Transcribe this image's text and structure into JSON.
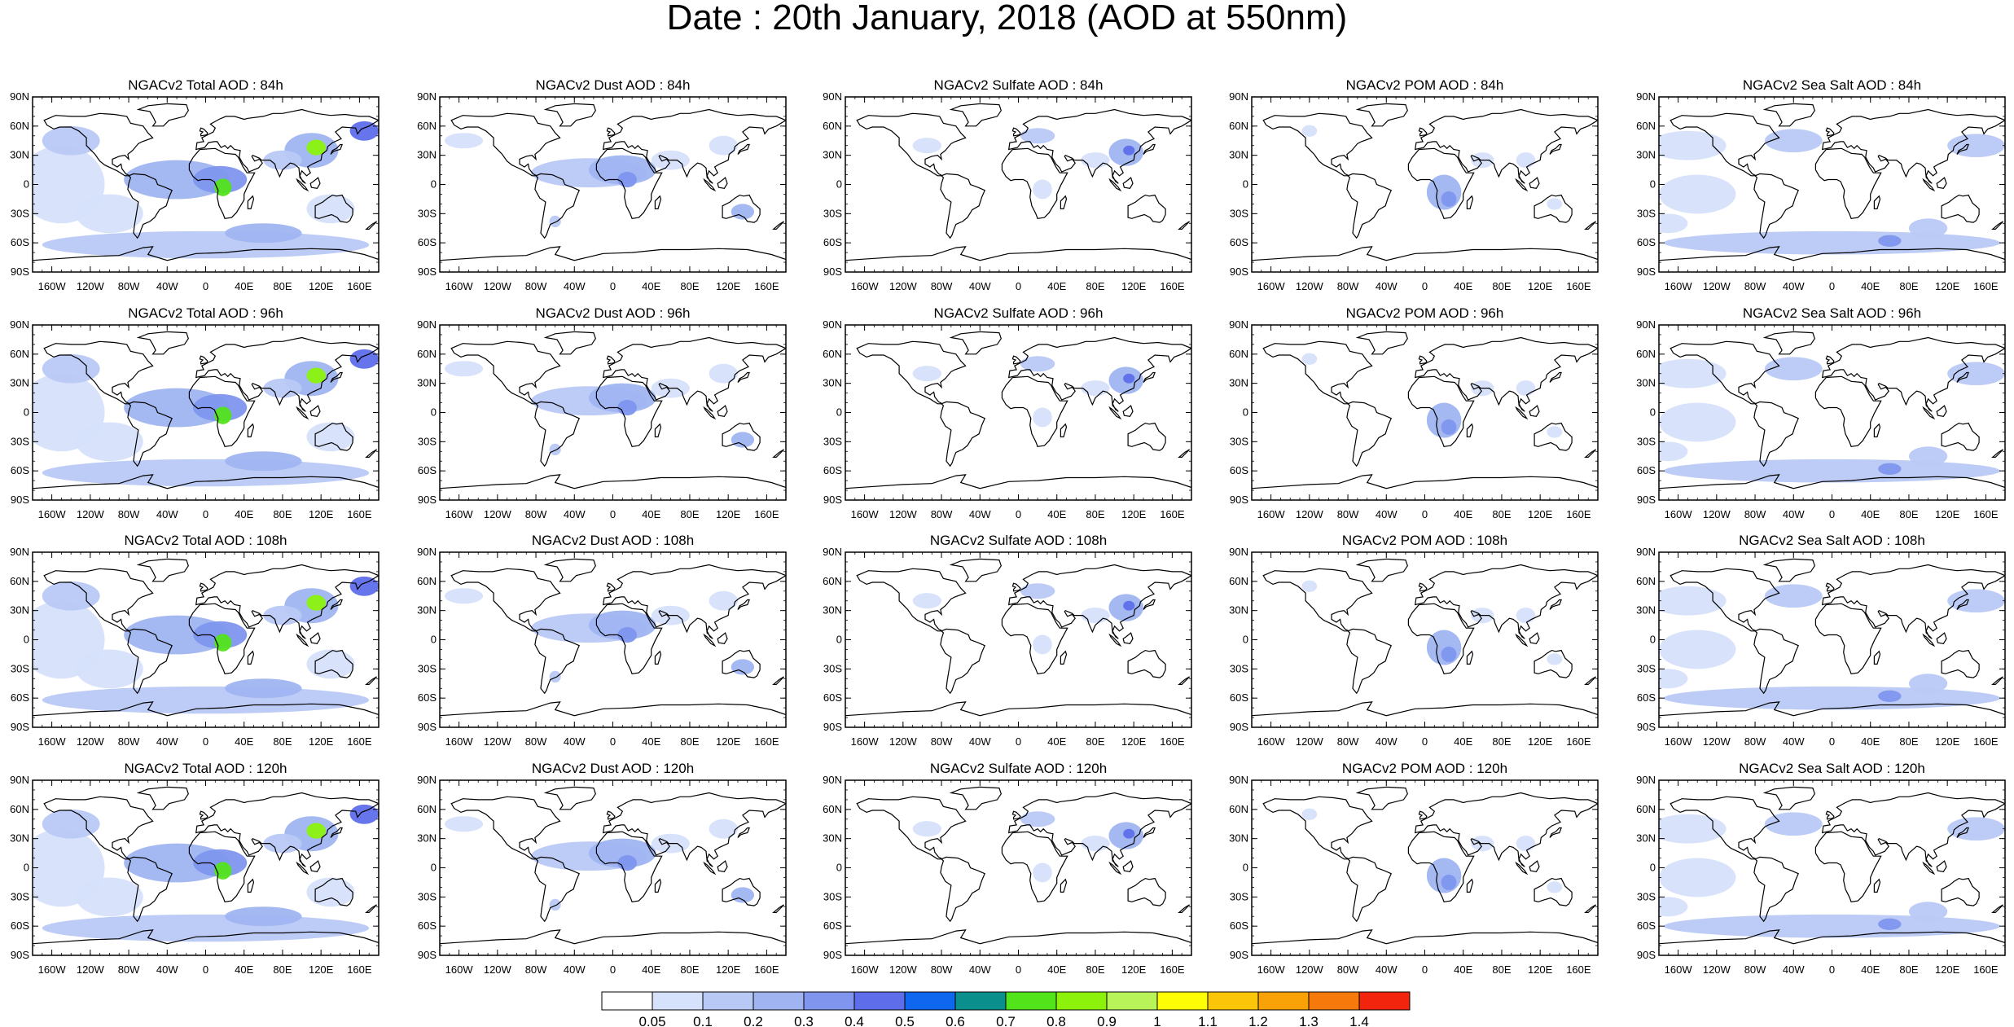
{
  "title": "Date : 20th January, 2018 (AOD at 550nm)",
  "panels": [
    {
      "title": "NGACv2 Total AOD : 84h",
      "variable": "total",
      "forecast": "84h"
    },
    {
      "title": "NGACv2 Dust AOD : 84h",
      "variable": "dust",
      "forecast": "84h"
    },
    {
      "title": "NGACv2 Sulfate AOD : 84h",
      "variable": "sulfate",
      "forecast": "84h"
    },
    {
      "title": "NGACv2 POM AOD : 84h",
      "variable": "pom",
      "forecast": "84h"
    },
    {
      "title": "NGACv2 Sea Salt AOD : 84h",
      "variable": "seasalt",
      "forecast": "84h"
    },
    {
      "title": "NGACv2 Total AOD : 96h",
      "variable": "total",
      "forecast": "96h"
    },
    {
      "title": "NGACv2 Dust AOD : 96h",
      "variable": "dust",
      "forecast": "96h"
    },
    {
      "title": "NGACv2 Sulfate AOD : 96h",
      "variable": "sulfate",
      "forecast": "96h"
    },
    {
      "title": "NGACv2 POM AOD : 96h",
      "variable": "pom",
      "forecast": "96h"
    },
    {
      "title": "NGACv2 Sea Salt AOD : 96h",
      "variable": "seasalt",
      "forecast": "96h"
    },
    {
      "title": "NGACv2 Total AOD : 108h",
      "variable": "total",
      "forecast": "108h"
    },
    {
      "title": "NGACv2 Dust AOD : 108h",
      "variable": "dust",
      "forecast": "108h"
    },
    {
      "title": "NGACv2 Sulfate AOD : 108h",
      "variable": "sulfate",
      "forecast": "108h"
    },
    {
      "title": "NGACv2 POM AOD : 108h",
      "variable": "pom",
      "forecast": "108h"
    },
    {
      "title": "NGACv2 Sea Salt AOD : 108h",
      "variable": "seasalt",
      "forecast": "108h"
    },
    {
      "title": "NGACv2 Total AOD : 120h",
      "variable": "total",
      "forecast": "120h"
    },
    {
      "title": "NGACv2 Dust AOD : 120h",
      "variable": "dust",
      "forecast": "120h"
    },
    {
      "title": "NGACv2 Sulfate AOD : 120h",
      "variable": "sulfate",
      "forecast": "120h"
    },
    {
      "title": "NGACv2 POM AOD : 120h",
      "variable": "pom",
      "forecast": "120h"
    },
    {
      "title": "NGACv2 Sea Salt  AOD : 120h",
      "variable": "seasalt",
      "forecast": "120h"
    }
  ],
  "lat_labels": [
    "90N",
    "60N",
    "30N",
    "0",
    "30S",
    "60S",
    "90S"
  ],
  "lon_labels": [
    "160W",
    "120W",
    "80W",
    "40W",
    "0",
    "40E",
    "80E",
    "120E",
    "160E"
  ],
  "colorbar": {
    "labels": [
      "0.05",
      "0.1",
      "0.2",
      "0.3",
      "0.4",
      "0.5",
      "0.6",
      "0.7",
      "0.8",
      "0.9",
      "1",
      "1.1",
      "1.2",
      "1.3",
      "1.4"
    ],
    "colors": [
      "#ffffff",
      "#d6e1fb",
      "#b9c9f6",
      "#9fb4f1",
      "#8096ee",
      "#5e6eea",
      "#0f66ef",
      "#0b8f8d",
      "#53e31b",
      "#8cf20c",
      "#b8f35a",
      "#fdfd05",
      "#fbc609",
      "#f9a208",
      "#f67a0b",
      "#f2240d"
    ]
  }
}
